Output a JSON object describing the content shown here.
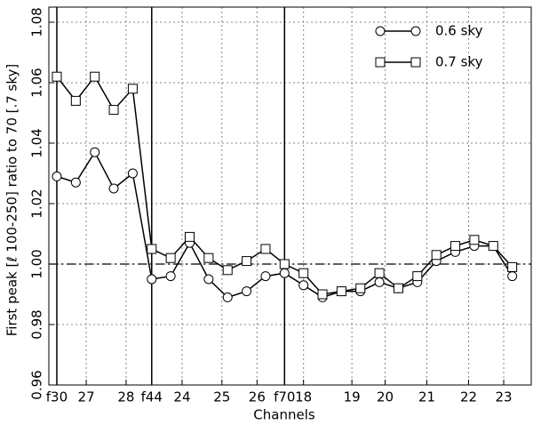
{
  "chart_data": {
    "type": "line",
    "xlabel": "Channels",
    "ylabel": "First peak [ℓ 100-250] ratio to 70 [.7 sky]",
    "x": [
      0,
      1,
      2,
      3,
      4,
      5,
      6,
      7,
      8,
      9,
      10,
      11,
      12,
      13,
      14,
      15,
      16,
      17,
      18,
      19,
      20,
      21,
      22,
      23,
      24
    ],
    "series": [
      {
        "name": "0.6 sky",
        "marker": "circle",
        "color": "#000000",
        "values": [
          1.029,
          1.027,
          1.037,
          1.025,
          1.03,
          0.995,
          0.996,
          1.007,
          0.995,
          0.989,
          0.991,
          0.996,
          0.997,
          0.993,
          0.989,
          0.991,
          0.991,
          0.994,
          0.992,
          0.994,
          1.001,
          1.004,
          1.006,
          1.006,
          0.996
        ]
      },
      {
        "name": "0.7 sky",
        "marker": "square",
        "color": "#000000",
        "values": [
          1.062,
          1.054,
          1.062,
          1.051,
          1.058,
          1.005,
          1.002,
          1.009,
          1.002,
          0.998,
          1.001,
          1.005,
          1.0,
          0.997,
          0.99,
          0.991,
          0.992,
          0.997,
          0.992,
          0.996,
          1.003,
          1.006,
          1.008,
          1.006,
          0.999
        ]
      }
    ],
    "xlim": [
      -0.42,
      25
    ],
    "ylim": [
      0.96,
      1.085
    ],
    "xticks": [
      {
        "value": 0,
        "label": "f30"
      },
      {
        "value": 1.55,
        "label": "27"
      },
      {
        "value": 3.65,
        "label": "28"
      },
      {
        "value": 5,
        "label": "f44"
      },
      {
        "value": 6.6,
        "label": "24"
      },
      {
        "value": 8.7,
        "label": "25"
      },
      {
        "value": 10.55,
        "label": "26"
      },
      {
        "value": 12,
        "label": "f70"
      },
      {
        "value": 13.0,
        "label": "18"
      },
      {
        "value": 15.55,
        "label": "19"
      },
      {
        "value": 17.3,
        "label": "20"
      },
      {
        "value": 19.5,
        "label": "21"
      },
      {
        "value": 21.7,
        "label": "22"
      },
      {
        "value": 23.55,
        "label": "23"
      }
    ],
    "yticks": [
      {
        "value": 0.96,
        "label": "0.96"
      },
      {
        "value": 0.98,
        "label": "0.98"
      },
      {
        "value": 1.0,
        "label": "1.00"
      },
      {
        "value": 1.02,
        "label": "1.02"
      },
      {
        "value": 1.04,
        "label": "1.04"
      },
      {
        "value": 1.06,
        "label": "1.06"
      },
      {
        "value": 1.08,
        "label": "1.08"
      }
    ],
    "vlines": [
      0,
      5,
      12
    ],
    "hline": 1.0,
    "grid": true,
    "legend": "upper right"
  }
}
